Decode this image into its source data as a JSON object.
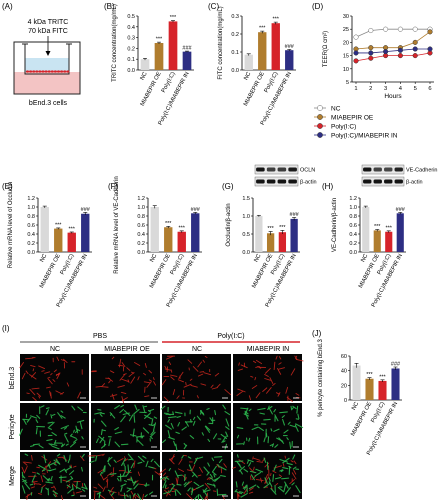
{
  "colors": {
    "nc": "#d9d9d9",
    "oe": "#b07d2e",
    "polyic": "#d6232a",
    "in": "#2d2e83",
    "insert_top": "#c9e4f2",
    "insert_bottom": "#f3c4c4",
    "cells": "#d6232a",
    "micro_red": "#c0261d",
    "micro_green": "#2bb24c"
  },
  "panelA": {
    "letter": "(A)",
    "line1": "4 kDa TRITC",
    "line2": "70 kDa FITC",
    "caption": "bEnd.3 cells"
  },
  "legendD": [
    "NC",
    "MIABEPIR OE",
    "Poly(I:C)",
    "Poly(I:C)/MIABEPIR IN"
  ],
  "panelI": {
    "letter": "(I)",
    "group_pbs": "PBS",
    "group_poly": "Poly(I:C)",
    "columns": [
      "NC",
      "MIABEPIR OE",
      "NC",
      "MIABEPIR IN"
    ],
    "rows": [
      "bEnd.3",
      "Pericyte",
      "Merge"
    ]
  },
  "chart_data": [
    {
      "id": "B",
      "letter": "(B)",
      "type": "bar",
      "categories": [
        "NC",
        "MIABEPIR OE",
        "Poly(I:C)",
        "Poly(I:C)/MIABEPIR IN"
      ],
      "values": [
        0.1,
        0.25,
        0.45,
        0.17
      ],
      "errors": [
        0.008,
        0.008,
        0.008,
        0.005
      ],
      "sig": [
        "",
        "***",
        "***",
        "###"
      ],
      "ylabel": "TRITC concentration(mg/mL)",
      "ylim": [
        0,
        0.5
      ],
      "yticks": [
        "0.0",
        "0.1",
        "0.2",
        "0.3",
        "0.4",
        "0.5"
      ]
    },
    {
      "id": "C",
      "letter": "(C)",
      "type": "bar",
      "categories": [
        "NC",
        "MIABEPIR OE",
        "Poly(I:C)",
        "Poly(I:C)/MIABEPIR IN"
      ],
      "values": [
        0.085,
        0.21,
        0.26,
        0.11
      ],
      "errors": [
        0.005,
        0.006,
        0.006,
        0.004
      ],
      "sig": [
        "",
        "***",
        "***",
        "###"
      ],
      "ylabel": "FITC concentration(mg/mL)",
      "ylim": [
        0,
        0.3
      ],
      "yticks": [
        "0.0",
        "0.1",
        "0.2",
        "0.3"
      ]
    },
    {
      "id": "D",
      "letter": "(D)",
      "type": "line",
      "x": [
        1,
        2,
        3,
        4,
        5,
        6
      ],
      "xticks": [
        "1",
        "2",
        "3",
        "4",
        "5",
        "6"
      ],
      "xlabel": "Hours",
      "ylabel": "TEER(Ω cm²)",
      "ylim": [
        5,
        30
      ],
      "yticks": [
        "5",
        "10",
        "15",
        "20",
        "25",
        "30"
      ],
      "series": [
        {
          "name": "NC",
          "values": [
            22,
            24.5,
            25,
            25,
            25,
            25
          ]
        },
        {
          "name": "MIABEPIR OE",
          "values": [
            17.5,
            18,
            18,
            18,
            20,
            24
          ]
        },
        {
          "name": "Poly(I:C)",
          "values": [
            13,
            14,
            15,
            15,
            15,
            16
          ]
        },
        {
          "name": "Poly(I:C)/MIABEPIR IN",
          "values": [
            16,
            16,
            16.5,
            17,
            17.5,
            17.5
          ]
        }
      ]
    },
    {
      "id": "E",
      "letter": "(E)",
      "type": "bar",
      "categories": [
        "NC",
        "MIABEPIR OE",
        "Poly(I:C)",
        "Poly(I:C)/MIABEPIR IN"
      ],
      "values": [
        1.0,
        0.52,
        0.43,
        0.85
      ],
      "errors": [
        0.02,
        0.015,
        0.015,
        0.03
      ],
      "sig": [
        "",
        "***",
        "***",
        "###"
      ],
      "ylabel": "Relative mRNA level of Occludin",
      "ylim": [
        0,
        1.2
      ],
      "yticks": [
        "0.0",
        "0.2",
        "0.4",
        "0.6",
        "0.8",
        "1.0",
        "1.2"
      ]
    },
    {
      "id": "F",
      "letter": "(F)",
      "type": "bar",
      "categories": [
        "NC",
        "MIABEPIR OE",
        "Poly(I:C)",
        "Poly(I:C)/MIABEPIR IN"
      ],
      "values": [
        1.0,
        0.55,
        0.45,
        0.86
      ],
      "errors": [
        0.03,
        0.02,
        0.02,
        0.02
      ],
      "sig": [
        "",
        "***",
        "***",
        "###"
      ],
      "ylabel": "Relative mRNA level of VE-Cadherin",
      "ylim": [
        0,
        1.2
      ],
      "yticks": [
        "0.0",
        "0.2",
        "0.4",
        "0.6",
        "0.8",
        "1.0",
        "1.2"
      ]
    },
    {
      "id": "G",
      "letter": "(G)",
      "type": "bar",
      "categories": [
        "NC",
        "MIABEPIR OE",
        "Poly(I:C)",
        "Poly(I:C)/MIABEPIR IN"
      ],
      "values": [
        1.0,
        0.52,
        0.55,
        0.92
      ],
      "errors": [
        0.02,
        0.05,
        0.05,
        0.04
      ],
      "sig": [
        "",
        "***",
        "***",
        "###"
      ],
      "ylabel": "Occludin/β-actin",
      "ylim": [
        0,
        1.5
      ],
      "yticks": [
        "0.0",
        "0.5",
        "1.0",
        "1.5"
      ],
      "blot_labels": [
        "OCLN",
        "β-actin"
      ]
    },
    {
      "id": "H",
      "letter": "(H)",
      "type": "bar",
      "categories": [
        "NC",
        "MIABEPIR OE",
        "Poly(I:C)",
        "Poly(I:C)/MIABEPIR IN"
      ],
      "values": [
        1.0,
        0.48,
        0.45,
        0.86
      ],
      "errors": [
        0.02,
        0.02,
        0.02,
        0.02
      ],
      "sig": [
        "",
        "***",
        "***",
        "###"
      ],
      "ylabel": "VE-Cadherin/β-actin",
      "ylim": [
        0,
        1.2
      ],
      "yticks": [
        "0.0",
        "0.2",
        "0.4",
        "0.6",
        "0.8",
        "1.0",
        "1.2"
      ],
      "blot_labels": [
        "VE-Cadherin",
        "β-actin"
      ]
    },
    {
      "id": "J",
      "letter": "(J)",
      "type": "bar",
      "categories": [
        "NC",
        "MIABEPIR OE",
        "Poly(I:C)",
        "Poly(I:C)/MIABEPIR IN"
      ],
      "values": [
        47,
        29,
        26,
        43
      ],
      "errors": [
        3,
        1.5,
        1.5,
        2
      ],
      "sig": [
        "",
        "***",
        "***",
        "###"
      ],
      "ylabel": "% pericyte containing bEnd.3",
      "ylim": [
        0,
        60
      ],
      "yticks": [
        "0",
        "20",
        "40",
        "60"
      ]
    }
  ]
}
